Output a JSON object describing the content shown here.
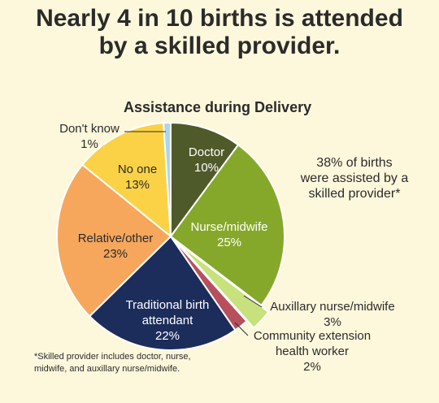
{
  "title_lines": [
    "Nearly 4 in 10 births is attended",
    "by a skilled provider."
  ],
  "chart_data": {
    "type": "pie",
    "title": "Assistance during Delivery",
    "unit": "%",
    "start_angle_deg": 0,
    "direction": "clockwise",
    "slices": [
      {
        "label_lines": [
          "Doctor"
        ],
        "value": 10,
        "color": "#4f5a2a",
        "label_color": "#ffffff",
        "label_position": "inside"
      },
      {
        "label_lines": [
          "Nurse/midwife"
        ],
        "value": 25,
        "color": "#86a82a",
        "label_color": "#ffffff",
        "label_position": "inside"
      },
      {
        "label_lines": [
          "Auxillary nurse/midwife"
        ],
        "value": 3,
        "color": "#c7e17c",
        "label_color": "#2b2b2b",
        "label_position": "outside",
        "exploded": true
      },
      {
        "label_lines": [
          "Community extension",
          "health worker"
        ],
        "value": 2,
        "color": "#b7505c",
        "label_color": "#2b2b2b",
        "label_position": "outside"
      },
      {
        "label_lines": [
          "Traditional birth",
          "attendant"
        ],
        "value": 22,
        "color": "#1c2c5b",
        "label_color": "#ffffff",
        "label_position": "inside"
      },
      {
        "label_lines": [
          "Relative/other"
        ],
        "value": 23,
        "color": "#f6a75c",
        "label_color": "#2b2b2b",
        "label_position": "inside"
      },
      {
        "label_lines": [
          "No one"
        ],
        "value": 13,
        "color": "#fbd246",
        "label_color": "#2b2b2b",
        "label_position": "inside"
      },
      {
        "label_lines": [
          "Don't know"
        ],
        "value": 1,
        "color": "#a9d7ee",
        "label_color": "#2b2b2b",
        "label_position": "outside"
      }
    ],
    "skilled_provider_categories": [
      "Doctor",
      "Nurse/midwife",
      "Auxillary nurse/midwife"
    ]
  },
  "annotation_lines": [
    "38% of births",
    "were assisted by a",
    "skilled provider*"
  ],
  "footnote_lines": [
    "*Skilled provider includes doctor, nurse,",
    "midwife, and auxillary nurse/midwife."
  ]
}
